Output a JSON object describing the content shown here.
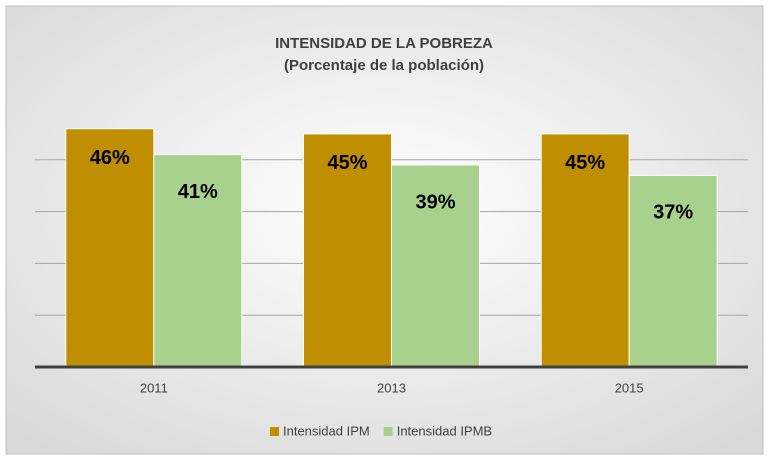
{
  "chart_data": {
    "type": "bar",
    "title": "INTENSIDAD DE LA POBREZA",
    "subtitle": "(Porcentaje de la población)",
    "categories": [
      "2011",
      "2013",
      "2015"
    ],
    "series": [
      {
        "name": "Intensidad IPM",
        "color": "#bf8f00",
        "values": [
          46,
          45,
          45
        ],
        "value_labels": [
          "46%",
          "45%",
          "45%"
        ]
      },
      {
        "name": "Intensidad IPMB",
        "color": "#a9d18e",
        "values": [
          41,
          39,
          37
        ],
        "value_labels": [
          "41%",
          "39%",
          "37%"
        ]
      }
    ],
    "ylim": [
      0,
      50
    ],
    "yticks": [
      0,
      10,
      20,
      30,
      40
    ],
    "grid": true,
    "legend": "bottom"
  }
}
